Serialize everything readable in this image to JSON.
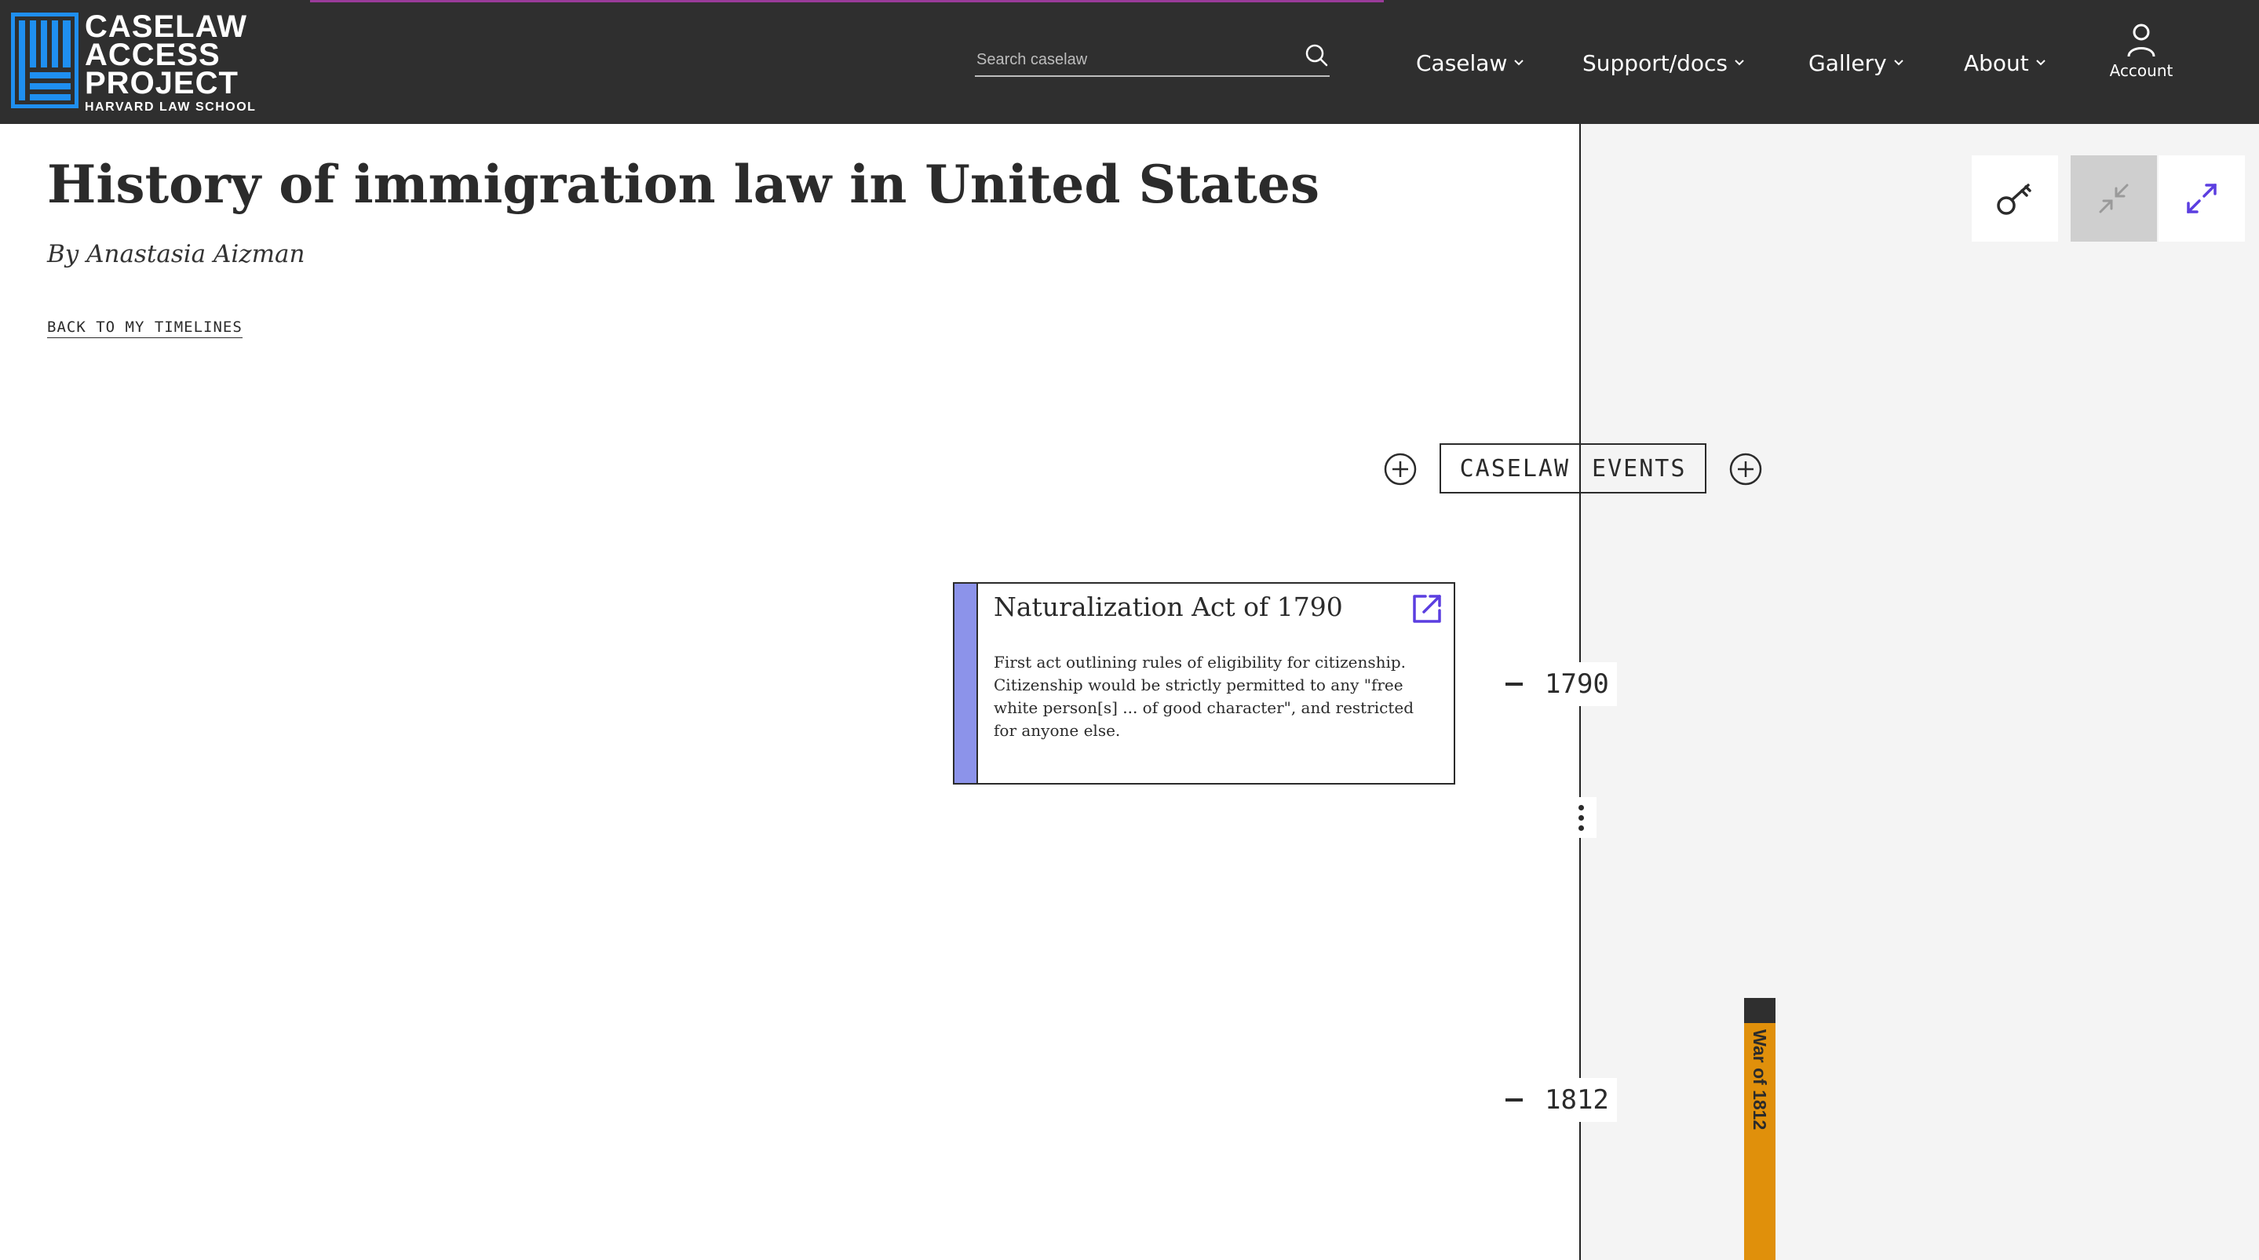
{
  "header": {
    "logo": {
      "line1": "CASELAW",
      "line2": "ACCESS",
      "line3": "PROJECT",
      "subtitle": "HARVARD LAW SCHOOL"
    },
    "search": {
      "placeholder": "Search caselaw",
      "value": ""
    },
    "nav": [
      {
        "label": "Caselaw"
      },
      {
        "label": "Support/docs"
      },
      {
        "label": "Gallery"
      },
      {
        "label": "About"
      }
    ],
    "account_label": "Account"
  },
  "page": {
    "title": "History of immigration law in United States",
    "byline": "By Anastasia Aizman",
    "back_link": "BACK TO MY TIMELINES"
  },
  "timeline": {
    "tracks": {
      "left": "CASELAW",
      "right": "EVENTS"
    },
    "years": [
      "1790",
      "1812"
    ],
    "events": [
      {
        "title": "Naturalization Act of 1790",
        "description": "First act outlining rules of eligibility for citizenship. Citizenship would be strictly permitted to any \"free white person[s] ... of good character\", and restricted for anyone else.",
        "color": "#8c93ea"
      }
    ],
    "periods": [
      {
        "label": "War of 1812",
        "color": "#e0900b"
      }
    ]
  },
  "colors": {
    "header_bg": "#2f2f2f",
    "logo_blue": "#1f8ff0",
    "accent_purple": "#5b3ee0",
    "panel_bg": "#f4f4f4"
  },
  "icons": {
    "search": "search-icon",
    "account": "user-icon",
    "key": "key-icon",
    "collapse": "collapse-arrows-icon",
    "expand": "expand-arrows-icon",
    "add": "plus-circle-icon",
    "open": "external-link-icon",
    "more": "kebab-menu-icon"
  }
}
